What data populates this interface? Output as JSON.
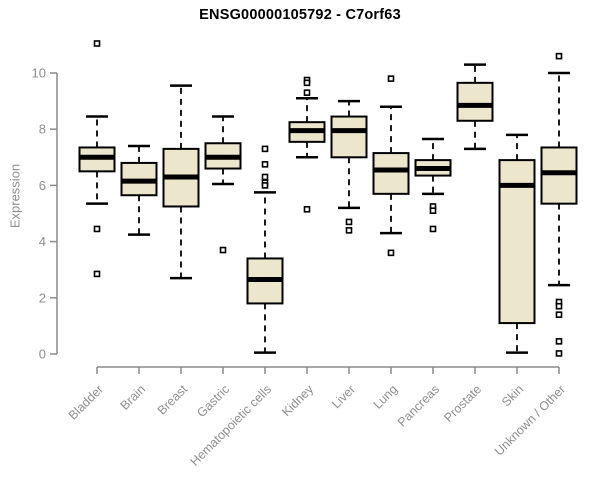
{
  "chart_data": {
    "type": "boxplot",
    "title": "ENSG00000105792 - C7orf63",
    "ylabel": "Expression",
    "xlabel": "",
    "ylim": [
      0,
      10
    ],
    "yticks": [
      0,
      2,
      4,
      6,
      8,
      10
    ],
    "grid": false,
    "legend": "none",
    "categories": [
      "Bladder",
      "Brain",
      "Breast",
      "Gastric",
      "Hematopoietic cells",
      "Kidney",
      "Liver",
      "Lung",
      "Pancreas",
      "Prostate",
      "Skin",
      "Unknown / Other"
    ],
    "series": [
      {
        "name": "Bladder",
        "whisker_low": 5.35,
        "q1": 6.5,
        "median": 7.0,
        "q3": 7.35,
        "whisker_high": 8.45,
        "outliers": [
          11.05,
          4.45,
          2.85
        ]
      },
      {
        "name": "Brain",
        "whisker_low": 4.25,
        "q1": 5.65,
        "median": 6.15,
        "q3": 6.8,
        "whisker_high": 7.4,
        "outliers": []
      },
      {
        "name": "Breast",
        "whisker_low": 2.7,
        "q1": 5.25,
        "median": 6.3,
        "q3": 7.3,
        "whisker_high": 9.55,
        "outliers": []
      },
      {
        "name": "Gastric",
        "whisker_low": 6.05,
        "q1": 6.6,
        "median": 7.0,
        "q3": 7.5,
        "whisker_high": 8.45,
        "outliers": [
          3.7
        ]
      },
      {
        "name": "Hematopoietic cells",
        "whisker_low": 0.05,
        "q1": 1.8,
        "median": 2.65,
        "q3": 3.4,
        "whisker_high": 5.75,
        "outliers": [
          7.3,
          6.75,
          6.3,
          6.1,
          6.0
        ]
      },
      {
        "name": "Kidney",
        "whisker_low": 7.0,
        "q1": 7.55,
        "median": 7.95,
        "q3": 8.25,
        "whisker_high": 9.1,
        "outliers": [
          9.75,
          9.65,
          9.3,
          5.15
        ]
      },
      {
        "name": "Liver",
        "whisker_low": 5.2,
        "q1": 7.0,
        "median": 7.95,
        "q3": 8.45,
        "whisker_high": 9.0,
        "outliers": [
          4.7,
          4.4
        ]
      },
      {
        "name": "Lung",
        "whisker_low": 4.3,
        "q1": 5.7,
        "median": 6.55,
        "q3": 7.15,
        "whisker_high": 8.8,
        "outliers": [
          9.8,
          3.6
        ]
      },
      {
        "name": "Pancreas",
        "whisker_low": 5.7,
        "q1": 6.35,
        "median": 6.6,
        "q3": 6.9,
        "whisker_high": 7.65,
        "outliers": [
          5.25,
          5.1,
          4.45
        ]
      },
      {
        "name": "Prostate",
        "whisker_low": 7.3,
        "q1": 8.3,
        "median": 8.85,
        "q3": 9.65,
        "whisker_high": 10.3,
        "outliers": []
      },
      {
        "name": "Skin",
        "whisker_low": 0.05,
        "q1": 1.1,
        "median": 6.0,
        "q3": 6.9,
        "whisker_high": 7.8,
        "outliers": []
      },
      {
        "name": "Unknown / Other",
        "whisker_low": 2.45,
        "q1": 5.35,
        "median": 6.45,
        "q3": 7.35,
        "whisker_high": 10.0,
        "outliers": [
          10.6,
          1.85,
          1.7,
          1.4,
          0.45,
          0.02
        ]
      }
    ],
    "colors": {
      "box_fill": "#ECE6CC",
      "box_stroke": "#000000",
      "median": "#000000",
      "outlier_stroke": "#000000",
      "axis": "#8A8A8A",
      "label": "#8E8E8E",
      "title": "#000000",
      "background": "#FFFFFF"
    }
  }
}
